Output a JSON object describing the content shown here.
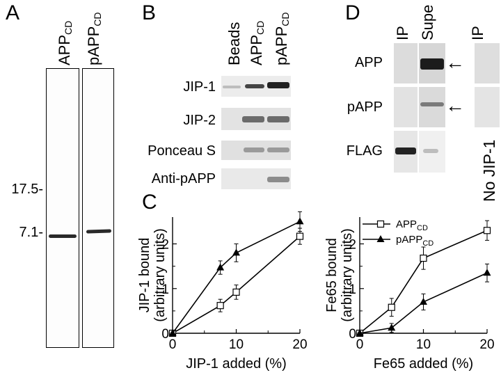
{
  "panels": {
    "a": "A",
    "b": "B",
    "c": "C",
    "d": "D"
  },
  "panel_a": {
    "lanes": [
      {
        "label": "APP",
        "sub": "CD"
      },
      {
        "label": "pAPP",
        "sub": "CD"
      }
    ],
    "markers": [
      "17.5-",
      "7.1-"
    ]
  },
  "panel_b": {
    "columns": [
      {
        "label": "Beads",
        "sub": ""
      },
      {
        "label": "APP",
        "sub": "CD"
      },
      {
        "label": "pAPP",
        "sub": "CD"
      }
    ],
    "rows": [
      "JIP-1",
      "JIP-2",
      "Ponceau S",
      "Anti-pAPP"
    ]
  },
  "panel_d": {
    "columns": [
      "IP",
      "Supe",
      "IP"
    ],
    "rows": [
      "APP",
      "pAPP",
      "FLAG"
    ],
    "side_label": "No JIP-1",
    "arrow_glyph": "←"
  },
  "chart_data": [
    {
      "type": "line",
      "xlabel": "JIP-1 added (%)",
      "ylabel": [
        "JIP-1 bound",
        "(arbitrary units)"
      ],
      "xlim": [
        0,
        20
      ],
      "ylim": [
        0,
        2.6
      ],
      "xticks": [
        "0",
        "10",
        "20"
      ],
      "yticks": [
        "0",
        "1",
        "2"
      ],
      "series": [
        {
          "marker": "square-open",
          "x": [
            0,
            7.5,
            10,
            20
          ],
          "y": [
            0,
            0.62,
            0.92,
            2.17
          ],
          "err": [
            0,
            0.14,
            0.16,
            0.18
          ]
        },
        {
          "marker": "triangle-filled",
          "x": [
            0,
            7.5,
            10,
            20
          ],
          "y": [
            0,
            1.47,
            1.8,
            2.5
          ],
          "err": [
            0,
            0.15,
            0.2,
            0.22
          ]
        }
      ]
    },
    {
      "type": "line",
      "xlabel": "Fe65 added (%)",
      "ylabel": [
        "Fe65 bound",
        "(arbitrary units)"
      ],
      "xlim": [
        0,
        20
      ],
      "ylim": [
        0,
        2.6
      ],
      "xticks": [
        "0",
        "10",
        "20"
      ],
      "yticks": [
        "0",
        "1",
        "2"
      ],
      "legend": [
        {
          "label": "APP",
          "sub": "CD",
          "marker": "square-open"
        },
        {
          "label": "pAPP",
          "sub": "CD",
          "marker": "triangle-filled"
        }
      ],
      "series": [
        {
          "marker": "square-open",
          "x": [
            0,
            5,
            10,
            20
          ],
          "y": [
            0,
            0.58,
            1.68,
            2.3
          ],
          "err": [
            0,
            0.2,
            0.25,
            0.22
          ]
        },
        {
          "marker": "triangle-filled",
          "x": [
            0,
            5,
            10,
            20
          ],
          "y": [
            0,
            0.12,
            0.7,
            1.35
          ],
          "err": [
            0,
            0.1,
            0.18,
            0.2
          ]
        }
      ]
    }
  ]
}
